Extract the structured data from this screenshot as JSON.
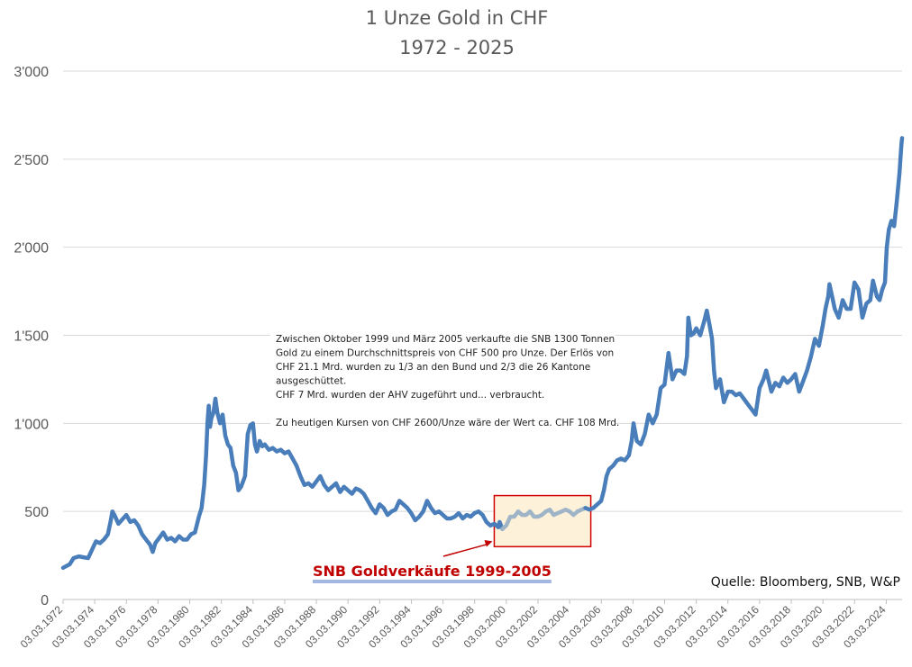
{
  "chart_data": {
    "type": "line",
    "title": [
      "1 Unze Gold in CHF",
      "1972 - 2025"
    ],
    "xlabel": "",
    "ylabel": "",
    "xlim": [
      "1972-03-03",
      "2025-03-03"
    ],
    "ylim": [
      0,
      3000
    ],
    "grid": true,
    "y_ticks": [
      "0",
      "500",
      "1'000",
      "1'500",
      "2'000",
      "2'500",
      "3'000"
    ],
    "x_ticks": [
      "03.03.1972",
      "03.03.1974",
      "03.03.1976",
      "03.03.1978",
      "03.03.1980",
      "03.03.1982",
      "03.03.1984",
      "03.03.1986",
      "03.03.1988",
      "03.03.1990",
      "03.03.1992",
      "03.03.1994",
      "03.03.1996",
      "03.03.1998",
      "03.03.2000",
      "03.03.2002",
      "03.03.2004",
      "03.03.2006",
      "03.03.2008",
      "03.03.2010",
      "03.03.2012",
      "03.03.2014",
      "03.03.2016",
      "03.03.2018",
      "03.03.2020",
      "03.03.2022",
      "03.03.2024"
    ],
    "series": [
      {
        "color": "#4a7ebb",
        "points": [
          [
            "1972-03-03",
            180
          ],
          [
            "1972-08-01",
            200
          ],
          [
            "1972-11-01",
            235
          ],
          [
            "1973-03-01",
            245
          ],
          [
            "1973-06-01",
            240
          ],
          [
            "1973-10-01",
            235
          ],
          [
            "1974-02-01",
            300
          ],
          [
            "1974-04-01",
            330
          ],
          [
            "1974-07-01",
            320
          ],
          [
            "1974-10-01",
            340
          ],
          [
            "1975-01-01",
            370
          ],
          [
            "1975-03-01",
            440
          ],
          [
            "1975-04-15",
            500
          ],
          [
            "1975-06-01",
            480
          ],
          [
            "1975-09-01",
            430
          ],
          [
            "1975-12-01",
            455
          ],
          [
            "1976-03-01",
            480
          ],
          [
            "1976-06-01",
            440
          ],
          [
            "1976-09-01",
            450
          ],
          [
            "1976-12-01",
            420
          ],
          [
            "1977-03-01",
            370
          ],
          [
            "1977-06-01",
            340
          ],
          [
            "1977-09-01",
            310
          ],
          [
            "1977-11-01",
            270
          ],
          [
            "1978-01-01",
            320
          ],
          [
            "1978-04-01",
            350
          ],
          [
            "1978-07-01",
            380
          ],
          [
            "1978-10-01",
            340
          ],
          [
            "1979-01-01",
            350
          ],
          [
            "1979-04-01",
            330
          ],
          [
            "1979-07-01",
            360
          ],
          [
            "1979-10-01",
            340
          ],
          [
            "1980-01-01",
            340
          ],
          [
            "1980-04-01",
            370
          ],
          [
            "1980-07-01",
            380
          ],
          [
            "1980-10-01",
            470
          ],
          [
            "1980-12-01",
            520
          ],
          [
            "1981-02-01",
            650
          ],
          [
            "1981-03-15",
            820
          ],
          [
            "1981-04-15",
            1000
          ],
          [
            "1981-05-15",
            1100
          ],
          [
            "1981-06-15",
            980
          ],
          [
            "1981-07-15",
            1030
          ],
          [
            "1981-09-01",
            1060
          ],
          [
            "1981-10-15",
            1140
          ],
          [
            "1981-12-01",
            1060
          ],
          [
            "1982-02-01",
            1000
          ],
          [
            "1982-04-01",
            1050
          ],
          [
            "1982-06-01",
            930
          ],
          [
            "1982-08-01",
            880
          ],
          [
            "1982-10-01",
            860
          ],
          [
            "1982-12-01",
            760
          ],
          [
            "1983-02-01",
            720
          ],
          [
            "1983-04-01",
            620
          ],
          [
            "1983-06-01",
            640
          ],
          [
            "1983-09-01",
            700
          ],
          [
            "1983-11-01",
            940
          ],
          [
            "1984-01-01",
            990
          ],
          [
            "1984-03-01",
            1000
          ],
          [
            "1984-04-15",
            880
          ],
          [
            "1984-06-01",
            840
          ],
          [
            "1984-08-01",
            900
          ],
          [
            "1984-10-01",
            870
          ],
          [
            "1984-12-01",
            880
          ],
          [
            "1985-03-01",
            850
          ],
          [
            "1985-06-01",
            860
          ],
          [
            "1985-09-01",
            840
          ],
          [
            "1985-12-01",
            850
          ],
          [
            "1986-03-01",
            830
          ],
          [
            "1986-06-01",
            840
          ],
          [
            "1986-09-01",
            800
          ],
          [
            "1986-12-01",
            760
          ],
          [
            "1987-03-01",
            700
          ],
          [
            "1987-06-01",
            650
          ],
          [
            "1987-09-01",
            660
          ],
          [
            "1987-12-01",
            640
          ],
          [
            "1988-03-01",
            670
          ],
          [
            "1988-06-01",
            700
          ],
          [
            "1988-09-01",
            650
          ],
          [
            "1988-12-01",
            620
          ],
          [
            "1989-03-01",
            640
          ],
          [
            "1989-06-01",
            660
          ],
          [
            "1989-09-01",
            610
          ],
          [
            "1989-12-01",
            640
          ],
          [
            "1990-03-01",
            620
          ],
          [
            "1990-06-01",
            600
          ],
          [
            "1990-09-01",
            630
          ],
          [
            "1990-12-01",
            620
          ],
          [
            "1991-03-01",
            600
          ],
          [
            "1991-06-01",
            560
          ],
          [
            "1991-09-01",
            520
          ],
          [
            "1991-12-01",
            490
          ],
          [
            "1992-03-01",
            540
          ],
          [
            "1992-06-01",
            520
          ],
          [
            "1992-09-01",
            480
          ],
          [
            "1992-12-01",
            500
          ],
          [
            "1993-03-01",
            510
          ],
          [
            "1993-06-01",
            560
          ],
          [
            "1993-09-01",
            540
          ],
          [
            "1993-12-01",
            520
          ],
          [
            "1994-03-01",
            490
          ],
          [
            "1994-06-01",
            450
          ],
          [
            "1994-09-01",
            470
          ],
          [
            "1994-12-01",
            500
          ],
          [
            "1995-03-01",
            560
          ],
          [
            "1995-06-01",
            520
          ],
          [
            "1995-09-01",
            490
          ],
          [
            "1995-12-01",
            500
          ],
          [
            "1996-03-01",
            480
          ],
          [
            "1996-06-01",
            460
          ],
          [
            "1996-09-01",
            460
          ],
          [
            "1996-12-01",
            470
          ],
          [
            "1997-03-01",
            490
          ],
          [
            "1997-06-01",
            460
          ],
          [
            "1997-09-01",
            480
          ],
          [
            "1997-12-01",
            470
          ],
          [
            "1998-03-01",
            490
          ],
          [
            "1998-06-01",
            500
          ],
          [
            "1998-09-01",
            480
          ],
          [
            "1998-12-01",
            440
          ],
          [
            "1999-03-01",
            420
          ],
          [
            "1999-06-01",
            430
          ],
          [
            "1999-09-01",
            410
          ],
          [
            "1999-10-01",
            440
          ],
          [
            "1999-12-01",
            400
          ],
          [
            "2000-03-01",
            420
          ],
          [
            "2000-06-01",
            470
          ],
          [
            "2000-09-01",
            470
          ],
          [
            "2000-12-01",
            500
          ],
          [
            "2001-03-01",
            480
          ],
          [
            "2001-06-01",
            480
          ],
          [
            "2001-09-01",
            500
          ],
          [
            "2001-12-01",
            470
          ],
          [
            "2002-03-01",
            470
          ],
          [
            "2002-06-01",
            480
          ],
          [
            "2002-09-01",
            500
          ],
          [
            "2002-12-01",
            510
          ],
          [
            "2003-03-01",
            480
          ],
          [
            "2003-06-01",
            490
          ],
          [
            "2003-09-01",
            500
          ],
          [
            "2003-12-01",
            510
          ],
          [
            "2004-03-01",
            500
          ],
          [
            "2004-06-01",
            480
          ],
          [
            "2004-09-01",
            500
          ],
          [
            "2004-12-01",
            510
          ],
          [
            "2005-03-01",
            520
          ],
          [
            "2005-06-01",
            510
          ],
          [
            "2005-09-01",
            520
          ],
          [
            "2005-12-01",
            540
          ],
          [
            "2006-03-01",
            560
          ],
          [
            "2006-05-01",
            620
          ],
          [
            "2006-07-01",
            700
          ],
          [
            "2006-09-01",
            740
          ],
          [
            "2006-12-01",
            760
          ],
          [
            "2007-03-01",
            790
          ],
          [
            "2007-06-01",
            800
          ],
          [
            "2007-09-01",
            790
          ],
          [
            "2007-12-01",
            820
          ],
          [
            "2008-02-01",
            900
          ],
          [
            "2008-03-15",
            1000
          ],
          [
            "2008-06-01",
            900
          ],
          [
            "2008-09-01",
            880
          ],
          [
            "2008-12-01",
            940
          ],
          [
            "2009-03-01",
            1050
          ],
          [
            "2009-06-01",
            1000
          ],
          [
            "2009-09-01",
            1050
          ],
          [
            "2009-12-01",
            1200
          ],
          [
            "2010-03-01",
            1220
          ],
          [
            "2010-06-01",
            1400
          ],
          [
            "2010-09-01",
            1250
          ],
          [
            "2010-12-01",
            1300
          ],
          [
            "2011-03-01",
            1300
          ],
          [
            "2011-06-01",
            1280
          ],
          [
            "2011-08-01",
            1380
          ],
          [
            "2011-09-01",
            1600
          ],
          [
            "2011-11-01",
            1500
          ],
          [
            "2012-01-01",
            1510
          ],
          [
            "2012-03-01",
            1540
          ],
          [
            "2012-06-01",
            1500
          ],
          [
            "2012-09-01",
            1580
          ],
          [
            "2012-11-01",
            1640
          ],
          [
            "2013-01-01",
            1560
          ],
          [
            "2013-03-01",
            1480
          ],
          [
            "2013-04-15",
            1300
          ],
          [
            "2013-06-01",
            1200
          ],
          [
            "2013-09-01",
            1250
          ],
          [
            "2013-12-01",
            1120
          ],
          [
            "2014-03-01",
            1180
          ],
          [
            "2014-06-01",
            1180
          ],
          [
            "2014-09-01",
            1160
          ],
          [
            "2014-12-01",
            1170
          ],
          [
            "2015-02-01",
            1150
          ],
          [
            "2015-06-01",
            1110
          ],
          [
            "2015-09-01",
            1080
          ],
          [
            "2015-12-01",
            1050
          ],
          [
            "2016-03-01",
            1200
          ],
          [
            "2016-06-01",
            1250
          ],
          [
            "2016-08-01",
            1300
          ],
          [
            "2016-12-01",
            1180
          ],
          [
            "2017-03-01",
            1230
          ],
          [
            "2017-06-01",
            1210
          ],
          [
            "2017-09-01",
            1260
          ],
          [
            "2017-12-01",
            1230
          ],
          [
            "2018-03-01",
            1250
          ],
          [
            "2018-06-01",
            1280
          ],
          [
            "2018-09-01",
            1180
          ],
          [
            "2018-12-01",
            1240
          ],
          [
            "2019-03-01",
            1300
          ],
          [
            "2019-06-01",
            1380
          ],
          [
            "2019-09-01",
            1480
          ],
          [
            "2019-12-01",
            1440
          ],
          [
            "2020-03-01",
            1560
          ],
          [
            "2020-05-01",
            1650
          ],
          [
            "2020-07-01",
            1720
          ],
          [
            "2020-08-01",
            1790
          ],
          [
            "2020-10-01",
            1720
          ],
          [
            "2020-12-01",
            1650
          ],
          [
            "2021-03-01",
            1600
          ],
          [
            "2021-06-01",
            1700
          ],
          [
            "2021-09-01",
            1650
          ],
          [
            "2021-12-01",
            1650
          ],
          [
            "2022-03-01",
            1800
          ],
          [
            "2022-06-01",
            1760
          ],
          [
            "2022-09-01",
            1600
          ],
          [
            "2022-12-01",
            1680
          ],
          [
            "2023-03-01",
            1700
          ],
          [
            "2023-05-01",
            1810
          ],
          [
            "2023-08-01",
            1720
          ],
          [
            "2023-10-01",
            1700
          ],
          [
            "2023-12-01",
            1760
          ],
          [
            "2024-02-01",
            1800
          ],
          [
            "2024-03-15",
            2000
          ],
          [
            "2024-05-01",
            2100
          ],
          [
            "2024-07-01",
            2150
          ],
          [
            "2024-09-01",
            2120
          ],
          [
            "2024-11-01",
            2260
          ],
          [
            "2025-01-01",
            2420
          ],
          [
            "2025-02-15",
            2580
          ],
          [
            "2025-03-03",
            2620
          ]
        ]
      }
    ],
    "highlight": {
      "range": [
        "1999-10-01",
        "2005-03-01"
      ],
      "label": "SNB Goldverkäufe 1999-2005",
      "color": "#c00000",
      "fill": "#fdf2d9",
      "line_color": "#a0b4c8"
    },
    "annotation": [
      "Zwischen Oktober 1999 und März 2005 verkaufte die SNB 1300 Tonnen",
      "Gold zu einem Durchschnittspreis von CHF 500 pro Unze. Der Erlös von",
      "CHF 21.1 Mrd. wurden zu 1/3 an den Bund und 2/3 die 26 Kantone",
      "ausgeschüttet.",
      "CHF 7 Mrd. wurden der AHV zugeführt und... verbraucht.",
      "",
      "Zu heutigen Kursen von CHF 2600/Unze wäre der Wert ca. CHF 108 Mrd."
    ],
    "source": "Quelle: Bloomberg, SNB, W&P"
  }
}
